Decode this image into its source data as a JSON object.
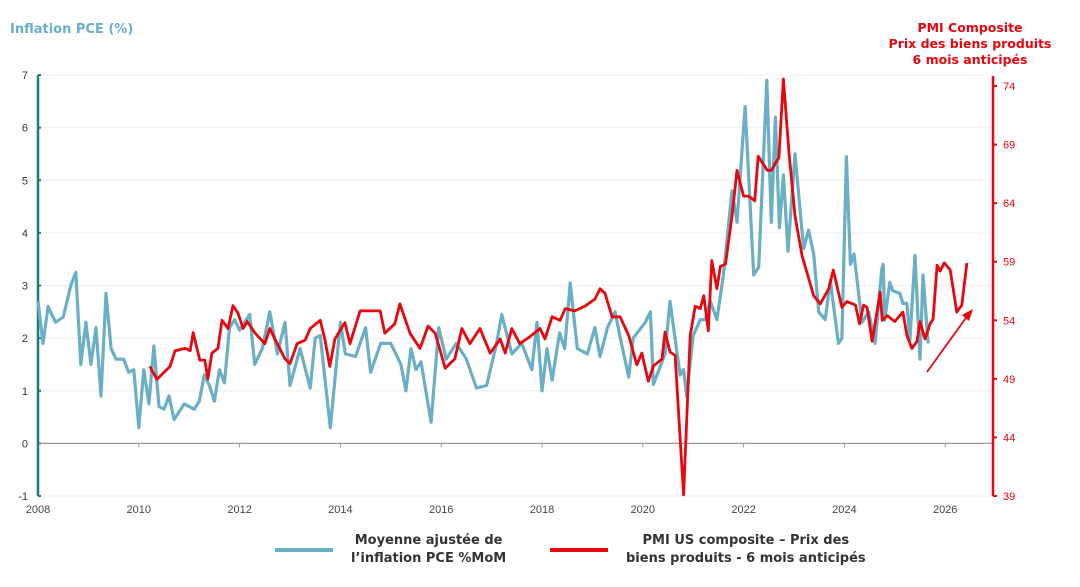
{
  "chart_data": {
    "type": "line",
    "left_axis_title": "Inflation PCE (%)",
    "right_axis_title": [
      "PMI Composite",
      "Prix des biens produits",
      "6 mois anticipés"
    ],
    "left_ylim": [
      -1,
      7
    ],
    "left_ticks": [
      "-1",
      "0",
      "1",
      "2",
      "3",
      "4",
      "5",
      "6",
      "7"
    ],
    "right_ylim": [
      39,
      74
    ],
    "right_ticks": [
      "39",
      "44",
      "49",
      "54",
      "59",
      "64",
      "69",
      "74"
    ],
    "xlim": [
      2008,
      2026.9
    ],
    "x_ticks": [
      "2008",
      "2010",
      "2012",
      "2014",
      "2016",
      "2018",
      "2020",
      "2022",
      "2024",
      "2026"
    ],
    "colors": {
      "pce": "#6aafc4",
      "pmi": "#e8060f",
      "left_axis": "#1f7a78"
    },
    "series": [
      {
        "name": "Moyenne ajustée de l'inflation PCE %MoM",
        "axis": "left",
        "points": [
          [
            2008.0,
            2.7
          ],
          [
            2008.1,
            1.9
          ],
          [
            2008.2,
            2.6
          ],
          [
            2008.35,
            2.3
          ],
          [
            2008.5,
            2.4
          ],
          [
            2008.65,
            3.0
          ],
          [
            2008.75,
            3.25
          ],
          [
            2008.85,
            1.5
          ],
          [
            2008.95,
            2.3
          ],
          [
            2009.05,
            1.5
          ],
          [
            2009.15,
            2.2
          ],
          [
            2009.25,
            0.9
          ],
          [
            2009.35,
            2.85
          ],
          [
            2009.45,
            1.8
          ],
          [
            2009.55,
            1.6
          ],
          [
            2009.7,
            1.6
          ],
          [
            2009.8,
            1.35
          ],
          [
            2009.9,
            1.4
          ],
          [
            2010.0,
            0.3
          ],
          [
            2010.1,
            1.4
          ],
          [
            2010.2,
            0.75
          ],
          [
            2010.3,
            1.85
          ],
          [
            2010.4,
            0.7
          ],
          [
            2010.5,
            0.65
          ],
          [
            2010.6,
            0.9
          ],
          [
            2010.7,
            0.45
          ],
          [
            2010.9,
            0.75
          ],
          [
            2011.1,
            0.65
          ],
          [
            2011.2,
            0.8
          ],
          [
            2011.3,
            1.3
          ],
          [
            2011.4,
            1.1
          ],
          [
            2011.5,
            0.8
          ],
          [
            2011.6,
            1.4
          ],
          [
            2011.7,
            1.15
          ],
          [
            2011.8,
            2.2
          ],
          [
            2011.9,
            2.35
          ],
          [
            2012.0,
            2.15
          ],
          [
            2012.1,
            2.3
          ],
          [
            2012.2,
            2.45
          ],
          [
            2012.3,
            1.5
          ],
          [
            2012.45,
            1.8
          ],
          [
            2012.6,
            2.5
          ],
          [
            2012.75,
            1.7
          ],
          [
            2012.9,
            2.3
          ],
          [
            2013.0,
            1.1
          ],
          [
            2013.2,
            1.8
          ],
          [
            2013.4,
            1.05
          ],
          [
            2013.5,
            2.0
          ],
          [
            2013.6,
            2.05
          ],
          [
            2013.8,
            0.3
          ],
          [
            2014.0,
            2.3
          ],
          [
            2014.1,
            1.7
          ],
          [
            2014.3,
            1.65
          ],
          [
            2014.5,
            2.2
          ],
          [
            2014.6,
            1.35
          ],
          [
            2014.8,
            1.9
          ],
          [
            2015.0,
            1.9
          ],
          [
            2015.2,
            1.5
          ],
          [
            2015.3,
            1.0
          ],
          [
            2015.4,
            1.8
          ],
          [
            2015.5,
            1.4
          ],
          [
            2015.6,
            1.55
          ],
          [
            2015.8,
            0.4
          ],
          [
            2015.95,
            2.2
          ],
          [
            2016.1,
            1.6
          ],
          [
            2016.3,
            1.9
          ],
          [
            2016.5,
            1.6
          ],
          [
            2016.7,
            1.05
          ],
          [
            2016.9,
            1.1
          ],
          [
            2017.1,
            1.9
          ],
          [
            2017.2,
            2.45
          ],
          [
            2017.4,
            1.7
          ],
          [
            2017.6,
            1.9
          ],
          [
            2017.8,
            1.4
          ],
          [
            2017.9,
            2.3
          ],
          [
            2018.0,
            1.0
          ],
          [
            2018.1,
            1.8
          ],
          [
            2018.2,
            1.2
          ],
          [
            2018.35,
            2.1
          ],
          [
            2018.45,
            1.8
          ],
          [
            2018.56,
            3.05
          ],
          [
            2018.7,
            1.8
          ],
          [
            2018.9,
            1.7
          ],
          [
            2019.05,
            2.2
          ],
          [
            2019.15,
            1.65
          ],
          [
            2019.3,
            2.2
          ],
          [
            2019.45,
            2.5
          ],
          [
            2019.55,
            2.02
          ],
          [
            2019.72,
            1.26
          ],
          [
            2019.81,
            2.0
          ],
          [
            2020.05,
            2.3
          ],
          [
            2020.15,
            2.5
          ],
          [
            2020.21,
            1.12
          ],
          [
            2020.44,
            1.7
          ],
          [
            2020.54,
            2.7
          ],
          [
            2020.74,
            1.3
          ],
          [
            2020.81,
            1.4
          ],
          [
            2020.87,
            0.9
          ],
          [
            2021.0,
            2.05
          ],
          [
            2021.14,
            2.35
          ],
          [
            2021.24,
            2.35
          ],
          [
            2021.34,
            2.7
          ],
          [
            2021.47,
            2.35
          ],
          [
            2021.6,
            3.2
          ],
          [
            2021.77,
            4.8
          ],
          [
            2021.87,
            4.2
          ],
          [
            2022.03,
            6.4
          ],
          [
            2022.2,
            3.2
          ],
          [
            2022.3,
            3.35
          ],
          [
            2022.46,
            6.9
          ],
          [
            2022.55,
            4.2
          ],
          [
            2022.63,
            6.2
          ],
          [
            2022.71,
            4.1
          ],
          [
            2022.79,
            5.1
          ],
          [
            2022.88,
            3.65
          ],
          [
            2023.02,
            5.5
          ],
          [
            2023.19,
            3.7
          ],
          [
            2023.29,
            4.05
          ],
          [
            2023.39,
            3.6
          ],
          [
            2023.49,
            2.5
          ],
          [
            2023.62,
            2.35
          ],
          [
            2023.72,
            3.1
          ],
          [
            2023.88,
            1.9
          ],
          [
            2023.95,
            2.0
          ],
          [
            2024.04,
            5.45
          ],
          [
            2024.12,
            3.4
          ],
          [
            2024.19,
            3.6
          ],
          [
            2024.35,
            2.3
          ],
          [
            2024.48,
            2.5
          ],
          [
            2024.61,
            1.9
          ],
          [
            2024.74,
            3.3
          ],
          [
            2024.77,
            3.4
          ],
          [
            2024.8,
            2.34
          ],
          [
            2024.9,
            3.06
          ],
          [
            2024.96,
            2.9
          ],
          [
            2025.1,
            2.85
          ],
          [
            2025.16,
            2.66
          ],
          [
            2025.24,
            2.66
          ],
          [
            2025.3,
            1.96
          ],
          [
            2025.4,
            3.57
          ],
          [
            2025.5,
            1.6
          ],
          [
            2025.56,
            3.2
          ],
          [
            2025.66,
            1.9
          ]
        ]
      },
      {
        "name": "PMI US composite – Prix des biens produits - 6 mois anticipés",
        "axis": "right",
        "points": [
          [
            2010.22,
            50.06
          ],
          [
            2010.36,
            48.95
          ],
          [
            2010.62,
            50.06
          ],
          [
            2010.72,
            51.4
          ],
          [
            2010.92,
            51.6
          ],
          [
            2011.02,
            51.4
          ],
          [
            2011.08,
            52.95
          ],
          [
            2011.21,
            50.6
          ],
          [
            2011.31,
            50.6
          ],
          [
            2011.37,
            49.0
          ],
          [
            2011.45,
            51.2
          ],
          [
            2011.57,
            51.6
          ],
          [
            2011.65,
            54.0
          ],
          [
            2011.77,
            53.3
          ],
          [
            2011.87,
            55.25
          ],
          [
            2011.97,
            54.6
          ],
          [
            2012.07,
            53.3
          ],
          [
            2012.15,
            53.9
          ],
          [
            2012.31,
            52.9
          ],
          [
            2012.5,
            52.0
          ],
          [
            2012.6,
            53.3
          ],
          [
            2012.7,
            52.4
          ],
          [
            2012.9,
            50.7
          ],
          [
            2013.0,
            50.3
          ],
          [
            2013.14,
            52.0
          ],
          [
            2013.3,
            52.3
          ],
          [
            2013.4,
            53.3
          ],
          [
            2013.6,
            54.0
          ],
          [
            2013.69,
            52.4
          ],
          [
            2013.79,
            50.06
          ],
          [
            2013.89,
            52.4
          ],
          [
            2014.09,
            53.8
          ],
          [
            2014.19,
            52.0
          ],
          [
            2014.39,
            54.8
          ],
          [
            2014.59,
            54.8
          ],
          [
            2014.79,
            54.8
          ],
          [
            2014.88,
            52.9
          ],
          [
            2015.08,
            53.7
          ],
          [
            2015.18,
            55.4
          ],
          [
            2015.38,
            52.9
          ],
          [
            2015.58,
            51.6
          ],
          [
            2015.74,
            53.5
          ],
          [
            2015.88,
            52.9
          ],
          [
            2016.08,
            49.9
          ],
          [
            2016.27,
            50.7
          ],
          [
            2016.41,
            53.3
          ],
          [
            2016.57,
            52.0
          ],
          [
            2016.77,
            53.3
          ],
          [
            2016.97,
            51.2
          ],
          [
            2017.17,
            52.4
          ],
          [
            2017.27,
            51.2
          ],
          [
            2017.4,
            53.3
          ],
          [
            2017.56,
            52.0
          ],
          [
            2017.76,
            52.6
          ],
          [
            2017.96,
            53.3
          ],
          [
            2018.06,
            52.4
          ],
          [
            2018.2,
            54.3
          ],
          [
            2018.36,
            54.0
          ],
          [
            2018.46,
            55.0
          ],
          [
            2018.65,
            54.8
          ],
          [
            2018.85,
            55.2
          ],
          [
            2019.05,
            55.8
          ],
          [
            2019.15,
            56.7
          ],
          [
            2019.25,
            56.3
          ],
          [
            2019.39,
            54.3
          ],
          [
            2019.55,
            54.3
          ],
          [
            2019.72,
            52.7
          ],
          [
            2019.88,
            50.2
          ],
          [
            2019.98,
            51.2
          ],
          [
            2020.11,
            48.8
          ],
          [
            2020.21,
            50.1
          ],
          [
            2020.38,
            50.7
          ],
          [
            2020.44,
            53.0
          ],
          [
            2020.54,
            51.3
          ],
          [
            2020.64,
            51.0
          ],
          [
            2020.81,
            39.1
          ],
          [
            2020.94,
            52.7
          ],
          [
            2021.04,
            55.2
          ],
          [
            2021.14,
            55.0
          ],
          [
            2021.21,
            56.1
          ],
          [
            2021.3,
            53.1
          ],
          [
            2021.37,
            59.1
          ],
          [
            2021.47,
            56.7
          ],
          [
            2021.54,
            58.6
          ],
          [
            2021.64,
            58.8
          ],
          [
            2021.77,
            62.9
          ],
          [
            2021.87,
            66.8
          ],
          [
            2022.0,
            64.6
          ],
          [
            2022.1,
            64.6
          ],
          [
            2022.22,
            64.2
          ],
          [
            2022.29,
            68.0
          ],
          [
            2022.47,
            66.8
          ],
          [
            2022.55,
            66.8
          ],
          [
            2022.7,
            67.9
          ],
          [
            2022.79,
            74.6
          ],
          [
            2022.9,
            68.3
          ],
          [
            2023.02,
            62.9
          ],
          [
            2023.16,
            59.5
          ],
          [
            2023.39,
            56.1
          ],
          [
            2023.52,
            55.4
          ],
          [
            2023.69,
            56.7
          ],
          [
            2023.78,
            58.3
          ],
          [
            2023.95,
            55.1
          ],
          [
            2024.05,
            55.6
          ],
          [
            2024.22,
            55.3
          ],
          [
            2024.3,
            53.7
          ],
          [
            2024.38,
            55.3
          ],
          [
            2024.45,
            55.1
          ],
          [
            2024.55,
            52.2
          ],
          [
            2024.71,
            56.4
          ],
          [
            2024.75,
            54.0
          ],
          [
            2024.85,
            54.4
          ],
          [
            2025.0,
            53.9
          ],
          [
            2025.16,
            54.7
          ],
          [
            2025.24,
            52.7
          ],
          [
            2025.34,
            51.6
          ],
          [
            2025.44,
            52.2
          ],
          [
            2025.5,
            53.9
          ],
          [
            2025.6,
            52.4
          ],
          [
            2025.7,
            53.7
          ],
          [
            2025.76,
            54.1
          ],
          [
            2025.84,
            58.7
          ],
          [
            2025.9,
            58.2
          ],
          [
            2025.98,
            58.9
          ],
          [
            2026.1,
            58.3
          ],
          [
            2026.23,
            54.7
          ],
          [
            2026.33,
            55.3
          ],
          [
            2026.43,
            58.9
          ]
        ]
      }
    ],
    "annotation": "upward-trend-arrow",
    "legend": {
      "placement": "bottom",
      "pce_label": [
        "Moyenne ajustée de",
        "l’inflation PCE %MoM"
      ],
      "pmi_label": [
        "PMI US composite – Prix des",
        "biens produits - 6 mois anticipés"
      ]
    }
  }
}
